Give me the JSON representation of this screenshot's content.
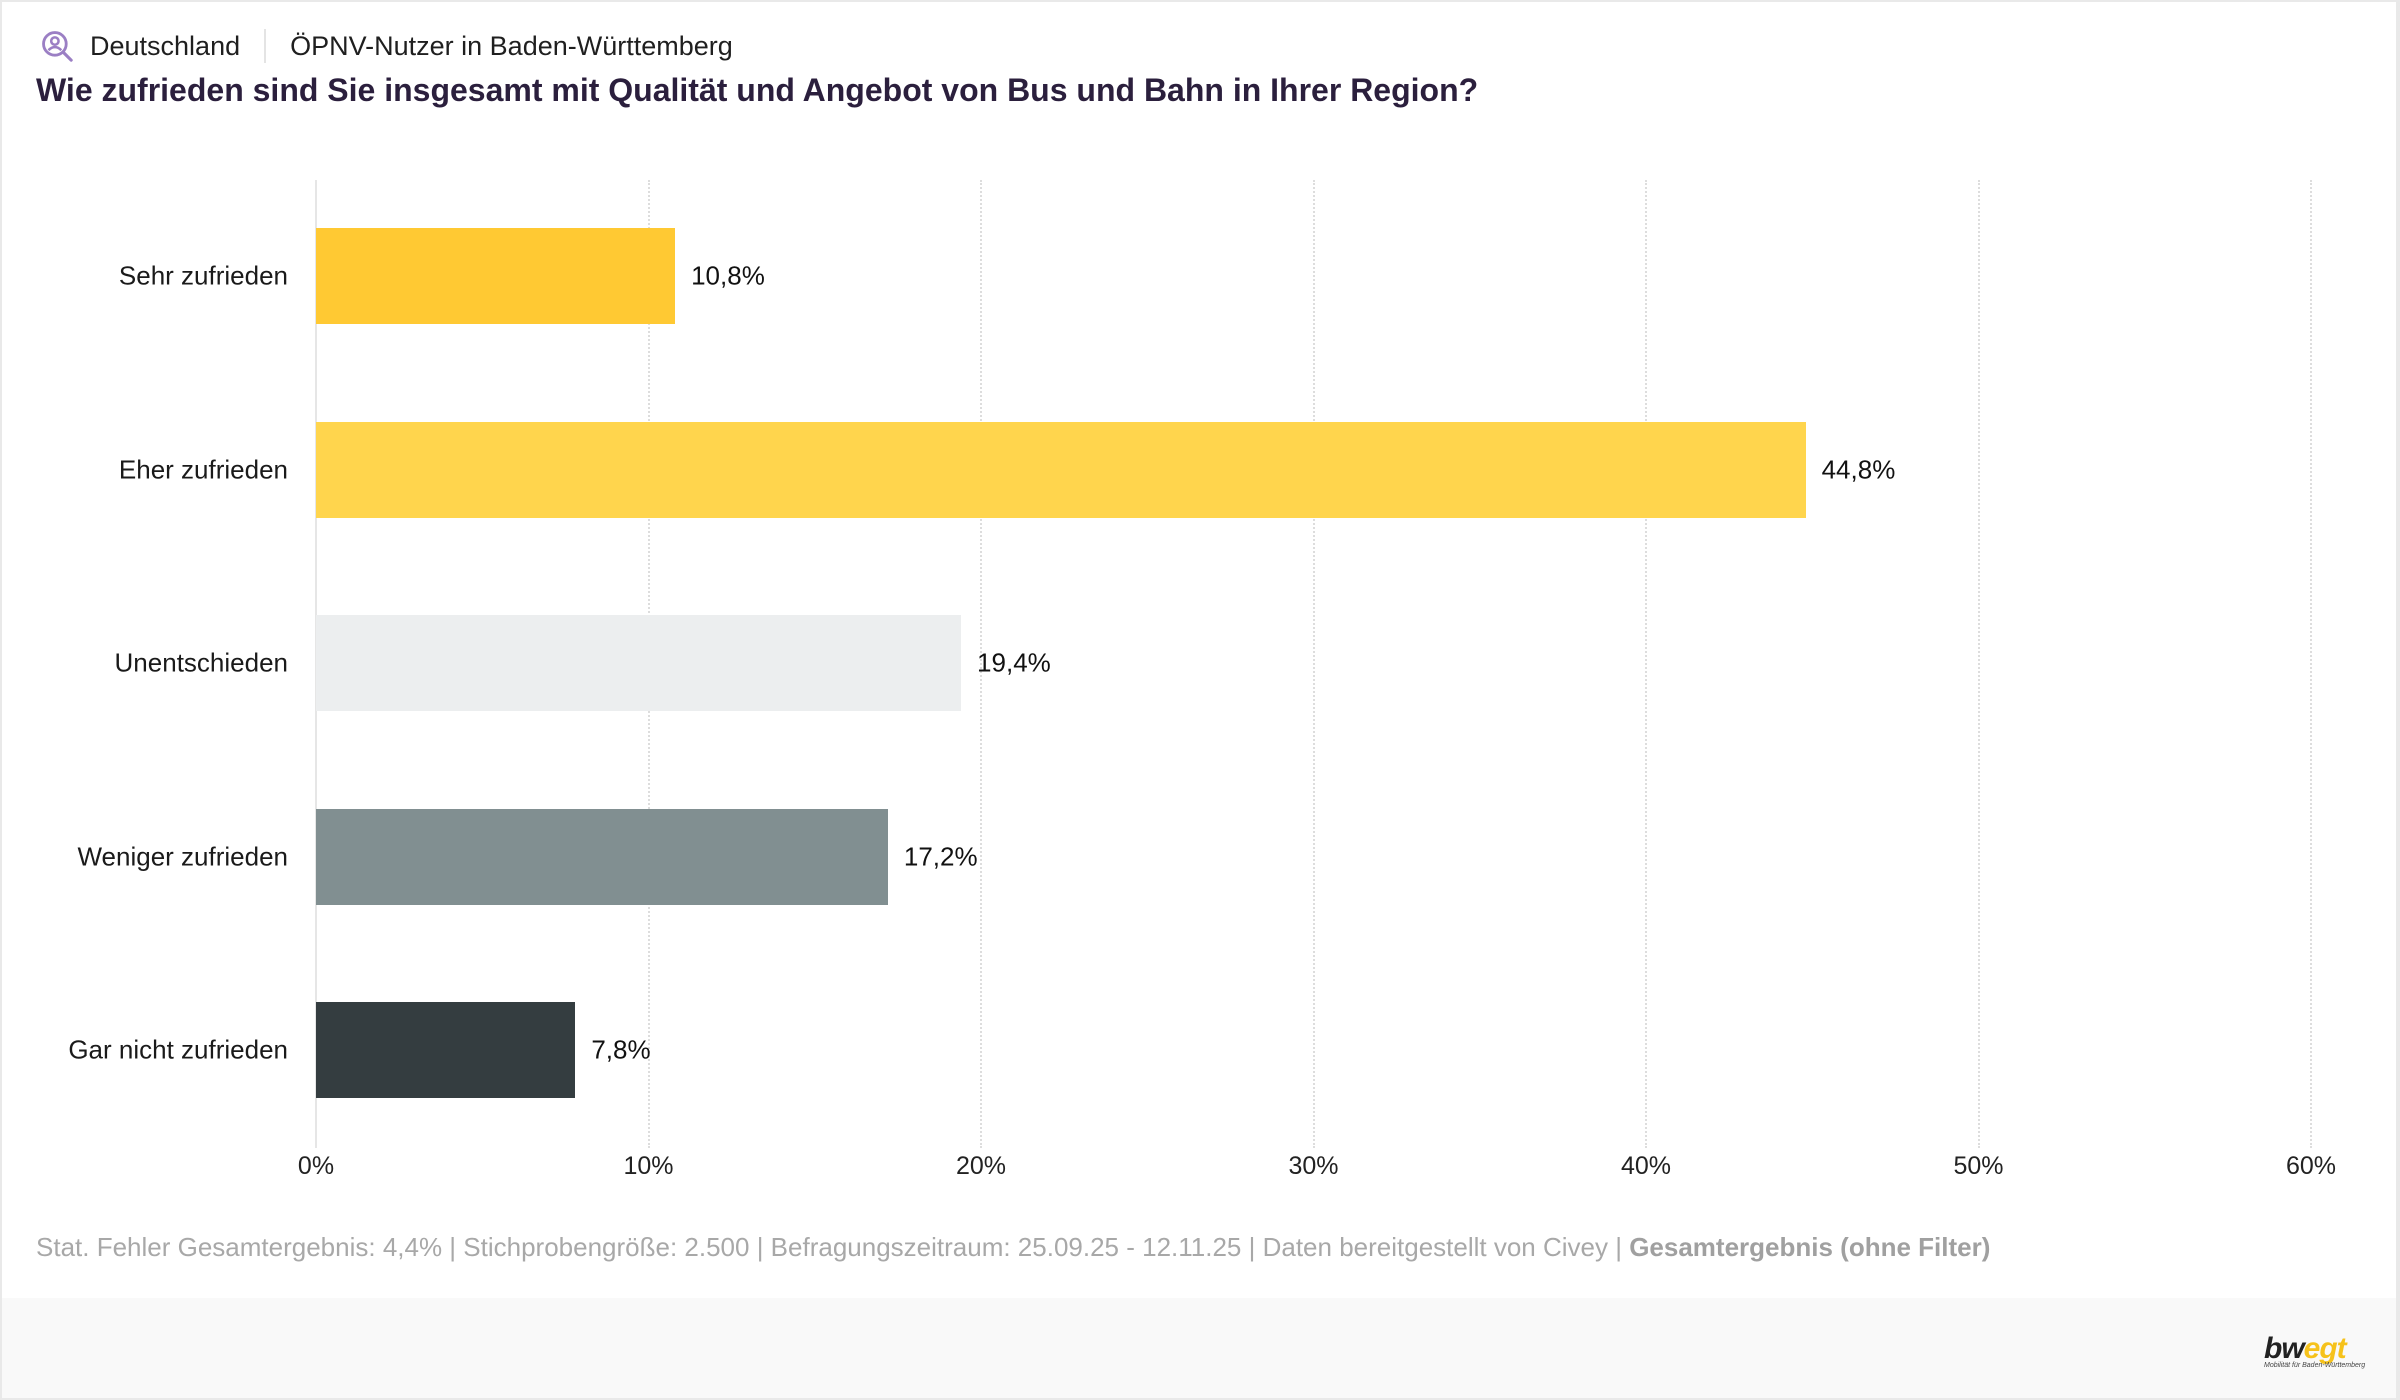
{
  "header": {
    "region": "Deutschland",
    "audience": "ÖPNV-Nutzer in Baden-Württemberg",
    "question": "Wie zufrieden sind Sie insgesamt mit Qualität und Angebot von Bus und Bahn in Ihrer Region?"
  },
  "chart_data": {
    "type": "bar",
    "orientation": "horizontal",
    "title": "Wie zufrieden sind Sie insgesamt mit Qualität und Angebot von Bus und Bahn in Ihrer Region?",
    "xlabel": "",
    "ylabel": "",
    "categories": [
      "Sehr zufrieden",
      "Eher zufrieden",
      "Unentschieden",
      "Weniger zufrieden",
      "Gar nicht zufrieden"
    ],
    "values": [
      10.8,
      44.8,
      19.4,
      17.2,
      7.8
    ],
    "value_labels": [
      "10,8%",
      "44,8%",
      "19,4%",
      "17,2%",
      "7,8%"
    ],
    "colors": [
      "#ffc933",
      "#ffd54d",
      "#eceeef",
      "#818f91",
      "#343d40"
    ],
    "xlim": [
      0,
      60
    ],
    "xticks": [
      0,
      10,
      20,
      30,
      40,
      50,
      60
    ],
    "xtick_labels": [
      "0%",
      "10%",
      "20%",
      "30%",
      "40%",
      "50%",
      "60%"
    ],
    "grid": "vertical-dotted",
    "legend": "none"
  },
  "footer": {
    "meta_text": "Stat. Fehler Gesamtergebnis: 4,4% | Stichprobengröße: 2.500 | Befragungszeitraum: 25.09.25 - 12.11.25 | Daten bereitgestellt von Civey | ",
    "filter_label": "Gesamtergebnis (ohne Filter)",
    "logo_main": "bw",
    "logo_accent": "egt",
    "logo_sub": "Mobilität für Baden-Württemberg"
  },
  "icons": {
    "audience": "user-search-icon"
  },
  "colors": {
    "accent_purple": "#9b7fc4",
    "title": "#2b1f3d"
  }
}
